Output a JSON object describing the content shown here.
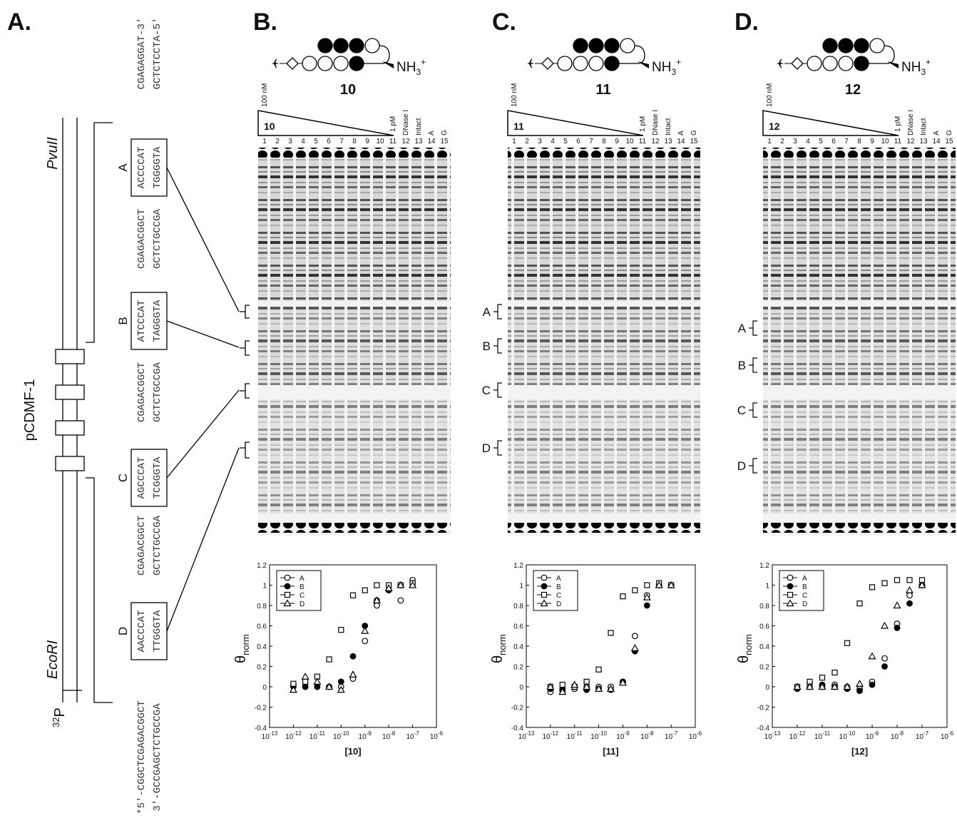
{
  "panel_a": {
    "label": "A.",
    "plasmid": "pCDMF-1",
    "enzymes": [
      "PvuII",
      "EcoRI"
    ],
    "isotope": {
      "mass": "32",
      "symbol": "P"
    },
    "sequences": [
      {
        "top": "CGAGAGGAT-3'",
        "bottom": "GCTCTCCTA-5'"
      },
      {
        "site": "A",
        "top": "ACCCCAT",
        "bottom": "TGGGGTA"
      },
      {
        "top": "CGAGACGGCT",
        "bottom": "GCTCTGCCGA"
      },
      {
        "site": "B",
        "top": "ATCCCAT",
        "bottom": "TAGGGTA"
      },
      {
        "top": "CGAGACGGCT",
        "bottom": "GCTCTGCCGA"
      },
      {
        "site": "C",
        "top": "AGCCCAT",
        "bottom": "TCGGGTA"
      },
      {
        "top": "CGAGACGGCT",
        "bottom": "GCTCTGCCGA"
      },
      {
        "site": "D",
        "top": "AACCCAT",
        "bottom": "TTGGGTA"
      },
      {
        "top": "*5'-CGGCTCGAGACGGCT",
        "bottom": "3'-GCCGAGCTCTGCCGA"
      }
    ]
  },
  "gel_panels": [
    {
      "label": "B.",
      "compound": "10",
      "amine": {
        "base": "NH",
        "sub": "3",
        "charge": "+"
      },
      "conc_high": "100 nM",
      "conc_low": "1 pM",
      "lanes": [
        1,
        2,
        3,
        4,
        5,
        6,
        7,
        8,
        9,
        10,
        11,
        12,
        13,
        14,
        15
      ],
      "lane_labels": [
        "DNase I",
        "Intact",
        "A",
        "G"
      ],
      "site_labels": []
    },
    {
      "label": "C.",
      "compound": "11",
      "amine": {
        "base": "NH",
        "sub": "3",
        "charge": "+"
      },
      "conc_high": "100 nM",
      "conc_low": "1 pM",
      "lanes": [
        1,
        2,
        3,
        4,
        5,
        6,
        7,
        8,
        9,
        10,
        11,
        12,
        13,
        14,
        15
      ],
      "lane_labels": [
        "DNase I",
        "Intact",
        "A",
        "G"
      ],
      "site_labels": [
        "A",
        "B",
        "C",
        "D"
      ]
    },
    {
      "label": "D.",
      "compound": "12",
      "amine": {
        "base": "NH",
        "sub": "3",
        "charge": "+"
      },
      "conc_high": "100 nM",
      "conc_low": "1 pM",
      "lanes": [
        1,
        2,
        3,
        4,
        5,
        6,
        7,
        8,
        9,
        10,
        11,
        12,
        13,
        14,
        15
      ],
      "lane_labels": [
        "DNase I",
        "Intact",
        "A",
        "G"
      ],
      "site_labels": [
        "A",
        "B",
        "C",
        "D"
      ]
    }
  ],
  "chart_data": [
    {
      "type": "scatter",
      "x_label": "[10]",
      "y_label": "θ",
      "y_label_sub": "norm",
      "xscale": "log",
      "xlim": [
        1e-13,
        1e-06
      ],
      "ylim": [
        -0.4,
        1.2
      ],
      "xticks": [
        {
          "value": 1e-13,
          "label": "10",
          "exponent": "-13"
        },
        {
          "value": 1e-12,
          "label": "10",
          "exponent": "-12"
        },
        {
          "value": 1e-11,
          "label": "10",
          "exponent": "-11"
        },
        {
          "value": 1e-10,
          "label": "10",
          "exponent": "-10"
        },
        {
          "value": 1e-09,
          "label": "10",
          "exponent": "-9"
        },
        {
          "value": 1e-08,
          "label": "10",
          "exponent": "-8"
        },
        {
          "value": 1e-07,
          "label": "10",
          "exponent": "-7"
        },
        {
          "value": 1e-06,
          "label": "10",
          "exponent": "-6"
        }
      ],
      "yticks": [
        -0.4,
        -0.2,
        0,
        0.2,
        0.4,
        0.6,
        0.8,
        1,
        1.2
      ],
      "legend": "upper left",
      "x": [
        1e-12,
        3.16e-12,
        1e-11,
        3.16e-11,
        1e-10,
        3.16e-10,
        1e-09,
        3.16e-09,
        1e-08,
        3.16e-08,
        1e-07
      ],
      "series": [
        {
          "name": "A",
          "marker": "circle",
          "filled": false,
          "color": "#000000",
          "values": [
            0.02,
            0,
            0,
            0,
            0,
            0.08,
            0.45,
            0.8,
            0.95,
            0.85,
            1.05
          ]
        },
        {
          "name": "B",
          "marker": "circle",
          "filled": true,
          "color": "#000000",
          "values": [
            0,
            0,
            0,
            0,
            0.05,
            0.3,
            0.6,
            0.85,
            0.95,
            1,
            1.02
          ]
        },
        {
          "name": "C",
          "marker": "square",
          "filled": false,
          "color": "#000000",
          "values": [
            0.03,
            0.05,
            0.1,
            0.27,
            0.56,
            0.9,
            0.95,
            1,
            1,
            1,
            1.02
          ]
        },
        {
          "name": "D",
          "marker": "triangle",
          "filled": false,
          "color": "#000000",
          "values": [
            -0.03,
            0.1,
            0.05,
            0,
            -0.03,
            0.12,
            0.55,
            0.85,
            0.97,
            1,
            1
          ]
        }
      ]
    },
    {
      "type": "scatter",
      "x_label": "[11]",
      "y_label": "θ",
      "y_label_sub": "norm",
      "xscale": "log",
      "xlim": [
        1e-13,
        1e-06
      ],
      "ylim": [
        -0.4,
        1.2
      ],
      "xticks": [
        {
          "value": 1e-13,
          "label": "10",
          "exponent": "-13"
        },
        {
          "value": 1e-12,
          "label": "10",
          "exponent": "-12"
        },
        {
          "value": 1e-11,
          "label": "10",
          "exponent": "-11"
        },
        {
          "value": 1e-10,
          "label": "10",
          "exponent": "-10"
        },
        {
          "value": 1e-09,
          "label": "10",
          "exponent": "-9"
        },
        {
          "value": 1e-08,
          "label": "10",
          "exponent": "-8"
        },
        {
          "value": 1e-07,
          "label": "10",
          "exponent": "-7"
        },
        {
          "value": 1e-06,
          "label": "10",
          "exponent": "-6"
        }
      ],
      "yticks": [
        -0.4,
        -0.2,
        0,
        0.2,
        0.4,
        0.6,
        0.8,
        1,
        1.2
      ],
      "legend": "upper left",
      "x": [
        1e-12,
        3.16e-12,
        1e-11,
        3.16e-11,
        1e-10,
        3.16e-10,
        1e-09,
        3.16e-09,
        1e-08,
        3.16e-08,
        1e-07
      ],
      "series": [
        {
          "name": "A",
          "marker": "circle",
          "filled": false,
          "color": "#000000",
          "values": [
            -0.05,
            -0.04,
            -0.02,
            0,
            0,
            0,
            0.05,
            0.5,
            0.9,
            1,
            1
          ]
        },
        {
          "name": "B",
          "marker": "circle",
          "filled": true,
          "color": "#000000",
          "values": [
            -0.02,
            -0.02,
            0,
            -0.03,
            -0.02,
            -0.03,
            0.05,
            0.35,
            0.8,
            1,
            1
          ]
        },
        {
          "name": "C",
          "marker": "square",
          "filled": false,
          "color": "#000000",
          "values": [
            0,
            0.02,
            0,
            0.05,
            0.17,
            0.53,
            0.89,
            0.95,
            1,
            1.02,
            1
          ]
        },
        {
          "name": "D",
          "marker": "triangle",
          "filled": false,
          "color": "#000000",
          "values": [
            0,
            -0.05,
            0.02,
            0,
            -0.02,
            -0.02,
            0.04,
            0.38,
            0.88,
            1,
            1
          ]
        }
      ]
    },
    {
      "type": "scatter",
      "x_label": "[12]",
      "y_label": "θ",
      "y_label_sub": "norm",
      "xscale": "log",
      "xlim": [
        1e-13,
        1e-06
      ],
      "ylim": [
        -0.4,
        1.2
      ],
      "xticks": [
        {
          "value": 1e-13,
          "label": "10",
          "exponent": "-13"
        },
        {
          "value": 1e-12,
          "label": "10",
          "exponent": "-12"
        },
        {
          "value": 1e-11,
          "label": "10",
          "exponent": "-11"
        },
        {
          "value": 1e-10,
          "label": "10",
          "exponent": "-10"
        },
        {
          "value": 1e-09,
          "label": "10",
          "exponent": "-9"
        },
        {
          "value": 1e-08,
          "label": "10",
          "exponent": "-8"
        },
        {
          "value": 1e-07,
          "label": "10",
          "exponent": "-7"
        },
        {
          "value": 1e-06,
          "label": "10",
          "exponent": "-6"
        }
      ],
      "yticks": [
        -0.4,
        -0.2,
        0,
        0.2,
        0.4,
        0.6,
        0.8,
        1,
        1.2
      ],
      "legend": "upper left",
      "x": [
        1e-12,
        3.16e-12,
        1e-11,
        3.16e-11,
        1e-10,
        3.16e-10,
        1e-09,
        3.16e-09,
        1e-08,
        3.16e-08,
        1e-07
      ],
      "series": [
        {
          "name": "A",
          "marker": "circle",
          "filled": false,
          "color": "#000000",
          "values": [
            -0.02,
            0,
            0,
            0.02,
            0,
            -0.02,
            0.05,
            0.28,
            0.62,
            0.9,
            1
          ]
        },
        {
          "name": "B",
          "marker": "circle",
          "filled": true,
          "color": "#000000",
          "values": [
            -0.02,
            0.04,
            0.02,
            0,
            -0.02,
            -0.04,
            0.02,
            0.2,
            0.58,
            0.82,
            1
          ]
        },
        {
          "name": "C",
          "marker": "square",
          "filled": false,
          "color": "#000000",
          "values": [
            0,
            0.05,
            0.09,
            0.14,
            0.43,
            0.82,
            0.98,
            1.02,
            1.05,
            1.05,
            1.05
          ]
        },
        {
          "name": "D",
          "marker": "triangle",
          "filled": false,
          "color": "#000000",
          "values": [
            0,
            0,
            0,
            0,
            0,
            0.03,
            0.3,
            0.6,
            0.8,
            0.95,
            1
          ]
        }
      ]
    }
  ]
}
